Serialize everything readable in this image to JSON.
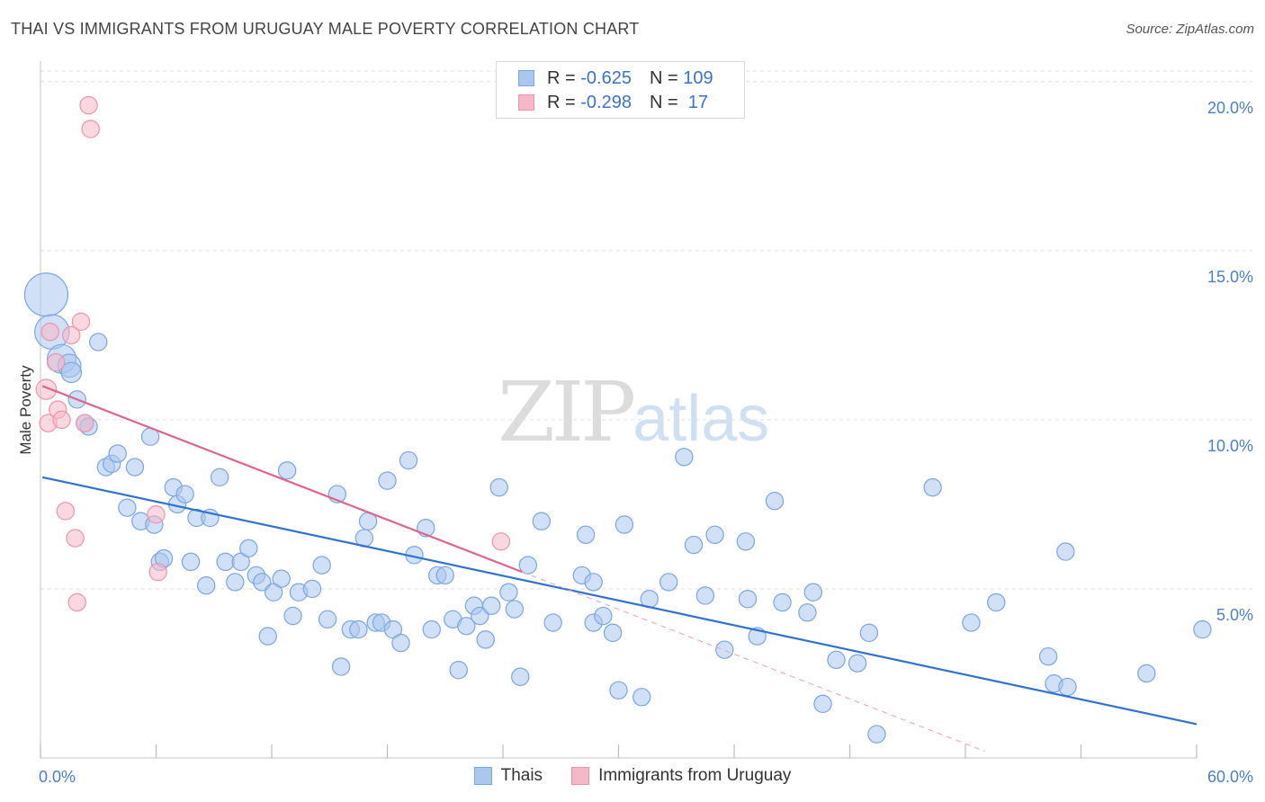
{
  "header": {
    "title": "THAI VS IMMIGRANTS FROM URUGUAY MALE POVERTY CORRELATION CHART",
    "source": "Source: ZipAtlas.com"
  },
  "watermark": {
    "zip": "ZIP",
    "atlas": "atlas"
  },
  "legend": {
    "rows": [
      {
        "r_label": "R = ",
        "r_value": "-0.625",
        "n_label": "N = ",
        "n_value": "109",
        "color": "#a9c7ef"
      },
      {
        "r_label": "R = ",
        "r_value": "-0.298",
        "n_label": "N = ",
        "n_value": " 17",
        "color": "#f6b8c8"
      }
    ]
  },
  "bottom_legend": [
    {
      "label": "Thais",
      "color": "#a9c7ef"
    },
    {
      "label": "Immigrants from Uruguay",
      "color": "#f6b8c8"
    }
  ],
  "chart_data": {
    "type": "scatter",
    "title": "THAI VS IMMIGRANTS FROM URUGUAY MALE POVERTY CORRELATION CHART",
    "xlabel": "",
    "ylabel": "Male Poverty",
    "xlim": [
      0,
      60
    ],
    "ylim": [
      0,
      20.5
    ],
    "x_tick_labels": [
      "0.0%",
      "60.0%"
    ],
    "y_ticks": [
      5,
      10,
      15,
      20
    ],
    "y_tick_labels": [
      "5.0%",
      "10.0%",
      "15.0%",
      "20.0%"
    ],
    "legend_position": "top-center",
    "series": [
      {
        "name": "Thais",
        "color": "#a9c7ef",
        "stroke": "#7aa6e0",
        "points": [
          [
            0.3,
            13.7,
            3
          ],
          [
            0.6,
            12.6,
            2.4
          ],
          [
            1.1,
            11.8,
            2
          ],
          [
            1.5,
            11.6,
            1.6
          ],
          [
            1.6,
            11.4,
            1.4
          ],
          [
            1.9,
            10.6,
            1.2
          ],
          [
            2.3,
            9.9,
            1.2
          ],
          [
            2.5,
            9.8,
            1.2
          ],
          [
            3.0,
            12.3,
            1.2
          ],
          [
            3.4,
            8.6,
            1.2
          ],
          [
            3.7,
            8.7,
            1.2
          ],
          [
            4.0,
            9.0,
            1.2
          ],
          [
            4.5,
            7.4,
            1.2
          ],
          [
            4.9,
            8.6,
            1.2
          ],
          [
            5.2,
            7.0,
            1.2
          ],
          [
            5.7,
            9.5,
            1.2
          ],
          [
            5.9,
            6.9,
            1.2
          ],
          [
            6.2,
            5.8,
            1.2
          ],
          [
            6.4,
            5.9,
            1.2
          ],
          [
            6.9,
            8.0,
            1.2
          ],
          [
            7.1,
            7.5,
            1.2
          ],
          [
            7.5,
            7.8,
            1.2
          ],
          [
            7.8,
            5.8,
            1.2
          ],
          [
            8.1,
            7.1,
            1.2
          ],
          [
            8.6,
            5.1,
            1.2
          ],
          [
            8.8,
            7.1,
            1.2
          ],
          [
            9.3,
            8.3,
            1.2
          ],
          [
            9.6,
            5.8,
            1.2
          ],
          [
            10.1,
            5.2,
            1.2
          ],
          [
            10.4,
            5.8,
            1.2
          ],
          [
            10.8,
            6.2,
            1.2
          ],
          [
            11.2,
            5.4,
            1.2
          ],
          [
            11.5,
            5.2,
            1.2
          ],
          [
            11.8,
            3.6,
            1.2
          ],
          [
            12.1,
            4.9,
            1.2
          ],
          [
            12.5,
            5.3,
            1.2
          ],
          [
            12.8,
            8.5,
            1.2
          ],
          [
            13.1,
            4.2,
            1.2
          ],
          [
            13.4,
            4.9,
            1.2
          ],
          [
            14.1,
            5.0,
            1.2
          ],
          [
            14.6,
            5.7,
            1.2
          ],
          [
            14.9,
            4.1,
            1.2
          ],
          [
            15.4,
            7.8,
            1.2
          ],
          [
            15.6,
            2.7,
            1.2
          ],
          [
            16.1,
            3.8,
            1.2
          ],
          [
            16.5,
            3.8,
            1.2
          ],
          [
            16.8,
            6.5,
            1.2
          ],
          [
            17.0,
            7.0,
            1.2
          ],
          [
            17.4,
            4.0,
            1.2
          ],
          [
            17.7,
            4.0,
            1.2
          ],
          [
            18.0,
            8.2,
            1.2
          ],
          [
            18.3,
            3.8,
            1.2
          ],
          [
            18.7,
            3.4,
            1.2
          ],
          [
            19.1,
            8.8,
            1.2
          ],
          [
            19.4,
            6.0,
            1.2
          ],
          [
            20.0,
            6.8,
            1.2
          ],
          [
            20.3,
            3.8,
            1.2
          ],
          [
            20.6,
            5.4,
            1.2
          ],
          [
            21.0,
            5.4,
            1.2
          ],
          [
            21.4,
            4.1,
            1.2
          ],
          [
            21.7,
            2.6,
            1.2
          ],
          [
            22.1,
            3.9,
            1.2
          ],
          [
            22.5,
            4.5,
            1.2
          ],
          [
            22.8,
            4.2,
            1.2
          ],
          [
            23.1,
            3.5,
            1.2
          ],
          [
            23.4,
            4.5,
            1.2
          ],
          [
            23.8,
            8.0,
            1.2
          ],
          [
            24.3,
            4.9,
            1.2
          ],
          [
            24.6,
            4.4,
            1.2
          ],
          [
            24.9,
            2.4,
            1.2
          ],
          [
            25.3,
            5.7,
            1.2
          ],
          [
            26.0,
            7.0,
            1.2
          ],
          [
            26.6,
            4.0,
            1.2
          ],
          [
            28.1,
            5.4,
            1.2
          ],
          [
            28.7,
            5.2,
            1.2
          ],
          [
            28.3,
            6.6,
            1.2
          ],
          [
            28.7,
            4.0,
            1.2
          ],
          [
            29.2,
            4.2,
            1.2
          ],
          [
            29.7,
            3.7,
            1.2
          ],
          [
            30.0,
            2.0,
            1.2
          ],
          [
            30.3,
            6.9,
            1.2
          ],
          [
            31.2,
            1.8,
            1.2
          ],
          [
            31.6,
            4.7,
            1.2
          ],
          [
            32.6,
            5.2,
            1.2
          ],
          [
            33.4,
            8.9,
            1.2
          ],
          [
            33.9,
            6.3,
            1.2
          ],
          [
            34.5,
            4.8,
            1.2
          ],
          [
            35.0,
            6.6,
            1.2
          ],
          [
            35.5,
            3.2,
            1.2
          ],
          [
            36.6,
            6.4,
            1.2
          ],
          [
            36.7,
            4.7,
            1.2
          ],
          [
            37.2,
            3.6,
            1.2
          ],
          [
            38.1,
            7.6,
            1.2
          ],
          [
            38.5,
            4.6,
            1.2
          ],
          [
            39.8,
            4.3,
            1.2
          ],
          [
            40.1,
            4.9,
            1.2
          ],
          [
            40.6,
            1.6,
            1.2
          ],
          [
            41.3,
            2.9,
            1.2
          ],
          [
            42.4,
            2.8,
            1.2
          ],
          [
            43.0,
            3.7,
            1.2
          ],
          [
            43.4,
            0.7,
            1.2
          ],
          [
            46.3,
            8.0,
            1.2
          ],
          [
            48.3,
            4.0,
            1.2
          ],
          [
            49.6,
            4.6,
            1.2
          ],
          [
            52.3,
            3.0,
            1.2
          ],
          [
            52.6,
            2.2,
            1.2
          ],
          [
            53.2,
            6.1,
            1.2
          ],
          [
            53.3,
            2.1,
            1.2
          ],
          [
            57.4,
            2.5,
            1.2
          ],
          [
            60.3,
            3.8,
            1.2
          ]
        ],
        "trend": {
          "x": [
            0.1,
            60.0
          ],
          "y": [
            8.3,
            1.0
          ]
        }
      },
      {
        "name": "Immigrants from Uruguay",
        "color": "#f6b8c8",
        "stroke": "#ef93ab",
        "points": [
          [
            0.3,
            10.9,
            1.4
          ],
          [
            0.4,
            9.9,
            1.2
          ],
          [
            0.5,
            12.6,
            1.2
          ],
          [
            0.8,
            11.7,
            1.2
          ],
          [
            0.9,
            10.3,
            1.2
          ],
          [
            1.1,
            10.0,
            1.2
          ],
          [
            1.3,
            7.3,
            1.2
          ],
          [
            1.6,
            12.5,
            1.2
          ],
          [
            1.8,
            6.5,
            1.2
          ],
          [
            1.9,
            4.6,
            1.2
          ],
          [
            2.1,
            12.9,
            1.2
          ],
          [
            2.3,
            9.9,
            1.2
          ],
          [
            2.5,
            19.3,
            1.2
          ],
          [
            2.6,
            18.6,
            1.2
          ],
          [
            6.0,
            7.2,
            1.2
          ],
          [
            6.1,
            5.5,
            1.2
          ],
          [
            23.9,
            6.4,
            1.2
          ]
        ],
        "trend": {
          "x": [
            0.1,
            25.0
          ],
          "y": [
            11.0,
            5.5
          ]
        },
        "trend_extension": {
          "x": [
            25.0,
            49.0
          ],
          "y": [
            5.5,
            0.2
          ]
        }
      }
    ]
  }
}
